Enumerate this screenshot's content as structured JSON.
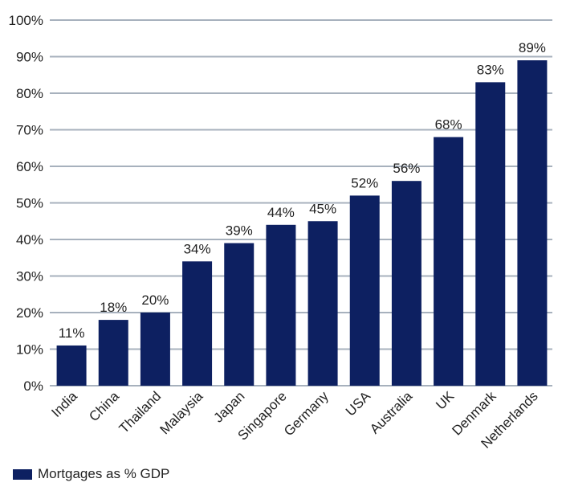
{
  "chart_data": {
    "type": "bar",
    "categories": [
      "India",
      "China",
      "Thailand",
      "Malaysia",
      "Japan",
      "Singapore",
      "Germany",
      "USA",
      "Australia",
      "UK",
      "Denmark",
      "Netherlands"
    ],
    "series": [
      {
        "name": "Mortgages as % GDP",
        "values": [
          11,
          18,
          20,
          34,
          39,
          44,
          45,
          52,
          56,
          68,
          83,
          89
        ],
        "data_labels": [
          "11%",
          "18%",
          "20%",
          "34%",
          "39%",
          "44%",
          "45%",
          "52%",
          "56%",
          "68%",
          "83%",
          "89%"
        ],
        "color": "#0d2061"
      }
    ],
    "y_ticks": [
      0,
      10,
      20,
      30,
      40,
      50,
      60,
      70,
      80,
      90,
      100
    ],
    "y_tick_labels": [
      "0%",
      "10%",
      "20%",
      "30%",
      "40%",
      "50%",
      "60%",
      "70%",
      "80%",
      "90%",
      "100%"
    ],
    "ylim": [
      0,
      100
    ],
    "grid": true,
    "gridline_color": "#a7b1bd",
    "legend_position": "bottom-left",
    "x_label_rotation": -45
  }
}
